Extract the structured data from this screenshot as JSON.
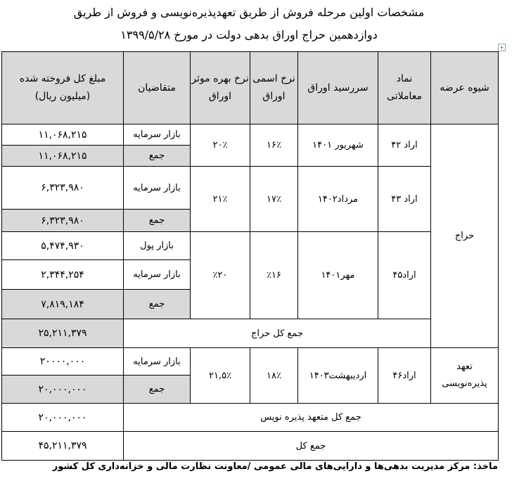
{
  "title_line1": "مشخصات اولین مرحله فروش از طریق تعهدپذیره‌نویسی و فروش از طریق",
  "title_line2": "دوازدهمین حراج اوراق بدهی دولت در مورخ ۱۳۹۹/۵/۲۸",
  "headers": [
    "شیوه عرضه",
    "نماد معاملاتی",
    "سررسید اوراق",
    "نرخ اسمی اوراق",
    "نرخ بهره موثر اوراق",
    "متقاضیان",
    "مبلغ کل فروخته شده (میلیون ریال)"
  ],
  "haraj": {
    "method": "حراج",
    "b1": {
      "symbol": "اراد ۴۲",
      "maturity": "شهریور ۱۴۰۱",
      "nominal": "۱۶٪",
      "effective": "۲۰٪",
      "r1_applicant": "بازار سرمایه",
      "r1_amount": "۱۱,۰۶۸,۲۱۵",
      "sum_label": "جمع",
      "sum_amount": "۱۱,۰۶۸,۲۱۵"
    },
    "b2": {
      "symbol": "اراد ۴۳",
      "maturity": "مرداد۱۴۰۲",
      "nominal": "۱۷٪",
      "effective": "۲۱٪",
      "r1_applicant": "بازار سرمایه",
      "r1_amount": "۶,۳۲۳,۹۸۰",
      "sum_label": "جمع",
      "sum_amount": "۶,۳۲۳,۹۸۰"
    },
    "b3": {
      "symbol": "اراد۴۵",
      "maturity": "مهر۱۴۰۱",
      "nominal": "٪۱۶",
      "effective": "٪۲۰",
      "r1_applicant": "بازار پول",
      "r1_amount": "۵,۴۷۴,۹۳۰",
      "r2_applicant": "بازار سرمایه",
      "r2_amount": "۲,۳۴۴,۲۵۴",
      "sum_label": "جمع",
      "sum_amount": "۷,۸۱۹,۱۸۴"
    },
    "total_label": "جمع کل حراج",
    "total_amount": "۲۵,۲۱۱,۳۷۹"
  },
  "tahod": {
    "method": "تعهد پذیره‌نویسی",
    "symbol": "اراد۴۶",
    "maturity": "اردیبهشت۱۴۰۳",
    "nominal": "۱۸٪",
    "effective": "۲۱,۵٪",
    "r1_applicant": "بازار سرمایه",
    "r1_amount": "۲۰۰۰۰,۰۰۰",
    "sum_label": "جمع",
    "sum_amount": "۲۰,۰۰۰,۰۰۰",
    "total_label": "جمع کل متعهد پذیره نویس",
    "total_amount": "۲۰,۰۰۰,۰۰۰"
  },
  "grand_total_label": "جمع کل",
  "grand_total_amount": "۴۵,۲۱۱,۳۷۹",
  "source": "ماخذ: مرکز مدیریت بدهی‌ها و دارایی‌های مالی عمومی /معاونت نظارت مالی و خزانه‌داری کل کشور"
}
